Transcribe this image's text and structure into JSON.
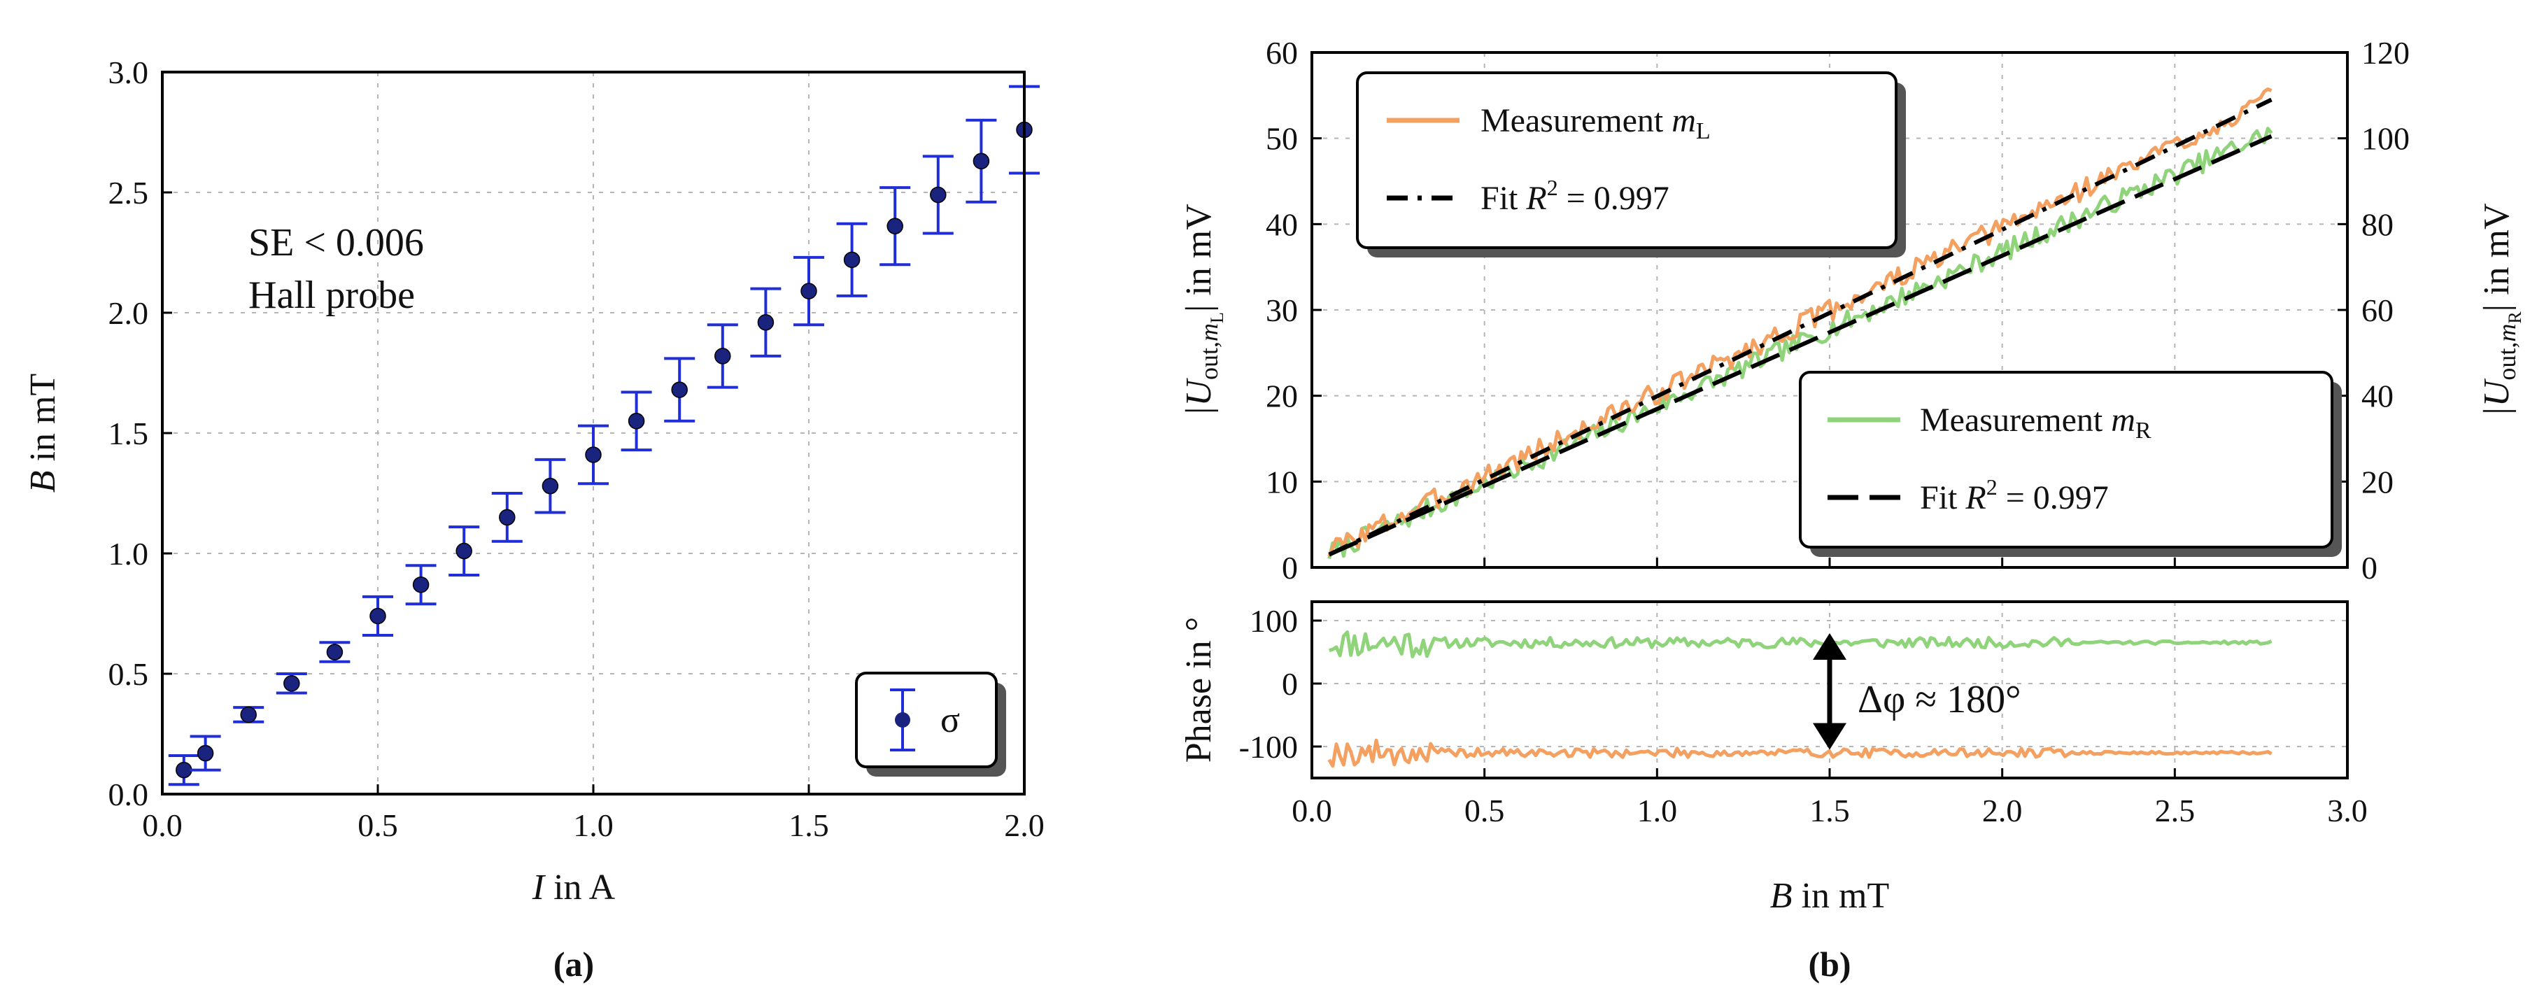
{
  "panels": {
    "a_label": "(a)",
    "b_label": "(b)"
  },
  "chart_data": [
    {
      "type": "scatter",
      "panel": "a",
      "x_label": [
        "I",
        " in A"
      ],
      "y_label": [
        "B",
        " in mT"
      ],
      "xlim": [
        0.0,
        2.0
      ],
      "ylim": [
        0.0,
        3.0
      ],
      "x_ticks": [
        "0.0",
        "0.5",
        "1.0",
        "1.5",
        "2.0"
      ],
      "y_ticks": [
        "0.0",
        "0.5",
        "1.0",
        "1.5",
        "2.0",
        "2.5",
        "3.0"
      ],
      "grid": true,
      "annotation": [
        "SE < 0.006",
        "Hall probe"
      ],
      "legend": {
        "placement": "bottom-right",
        "label": "σ"
      },
      "series": [
        {
          "name": "σ",
          "x": [
            0.05,
            0.1,
            0.2,
            0.3,
            0.4,
            0.5,
            0.6,
            0.7,
            0.8,
            0.9,
            1.0,
            1.1,
            1.2,
            1.3,
            1.4,
            1.5,
            1.6,
            1.7,
            1.8,
            1.9,
            2.0
          ],
          "y": [
            0.1,
            0.17,
            0.33,
            0.46,
            0.59,
            0.74,
            0.87,
            1.01,
            1.15,
            1.28,
            1.41,
            1.55,
            1.68,
            1.82,
            1.96,
            2.09,
            2.22,
            2.36,
            2.49,
            2.63,
            2.76
          ],
          "err": [
            0.06,
            0.07,
            0.03,
            0.04,
            0.04,
            0.08,
            0.08,
            0.1,
            0.1,
            0.11,
            0.12,
            0.12,
            0.13,
            0.13,
            0.14,
            0.14,
            0.15,
            0.16,
            0.16,
            0.17,
            0.18
          ]
        }
      ],
      "colors": {
        "marker": "#1a237e",
        "errorbar": "#1f2ed6"
      }
    },
    {
      "type": "line",
      "panel": "b-top",
      "xlim": [
        0.0,
        3.0
      ],
      "ylim_left": [
        0,
        60
      ],
      "ylim_right": [
        0,
        120
      ],
      "y_ticks_left": [
        "0",
        "10",
        "20",
        "30",
        "40",
        "50",
        "60"
      ],
      "y_ticks_right": [
        "0",
        "20",
        "40",
        "60",
        "80",
        "100",
        "120"
      ],
      "y_label_left": [
        "|U",
        "out,",
        "m",
        "L",
        "| in mV"
      ],
      "y_label_right": [
        "|U",
        "out,",
        "m",
        "R",
        "| in mV"
      ],
      "grid": true,
      "legend_top": {
        "placement": "top-left",
        "measurement": [
          "Measurement ",
          "m",
          "L"
        ],
        "fit": [
          "Fit ",
          "R",
          "2",
          " = 0.997"
        ]
      },
      "legend_bottom": {
        "placement": "bottom-right",
        "measurement": [
          "Measurement ",
          "m",
          "R"
        ],
        "fit": [
          "Fit ",
          "R",
          "2",
          " = 0.997"
        ]
      },
      "series": [
        {
          "name": "Measurement mL",
          "axis": "left",
          "slope_per_mT": 19.3,
          "intercept": 1.0,
          "noise": 1.3,
          "x_range": [
            0.05,
            2.78
          ]
        },
        {
          "name": "Measurement mR",
          "axis": "right",
          "slope_per_mT": 36.0,
          "intercept": 1.5,
          "noise": 2.4,
          "x_range": [
            0.05,
            2.78
          ]
        },
        {
          "name": "Fit mL",
          "axis": "left",
          "x": [
            0.05,
            2.78
          ],
          "y": [
            1.5,
            54.5
          ]
        },
        {
          "name": "Fit mR",
          "axis": "right",
          "x": [
            0.05,
            2.78
          ],
          "y": [
            3.0,
            100.5
          ]
        }
      ],
      "colors": {
        "mL": "#f4a060",
        "mR": "#8fd47a",
        "fit": "#000000"
      }
    },
    {
      "type": "line",
      "panel": "b-bottom",
      "xlim": [
        0.0,
        3.0
      ],
      "ylim": [
        -150,
        130
      ],
      "x_ticks": [
        "0.0",
        "0.5",
        "1.0",
        "1.5",
        "2.0",
        "2.5",
        "3.0"
      ],
      "y_ticks": [
        "100",
        "0",
        "-100"
      ],
      "x_label": [
        "B",
        " in mT"
      ],
      "y_label": "Phase in °",
      "annotation": "Δφ ≈ 180°",
      "arrow_x": 1.5,
      "arrow_y": [
        80,
        -105
      ],
      "series": [
        {
          "name": "Phase mR",
          "mean": 65,
          "noise": 8,
          "x_range": [
            0.05,
            2.78
          ]
        },
        {
          "name": "Phase mL",
          "mean": -110,
          "noise": 7,
          "x_range": [
            0.05,
            2.78
          ]
        }
      ],
      "colors": {
        "mL": "#f4a060",
        "mR": "#8fd47a"
      }
    }
  ]
}
